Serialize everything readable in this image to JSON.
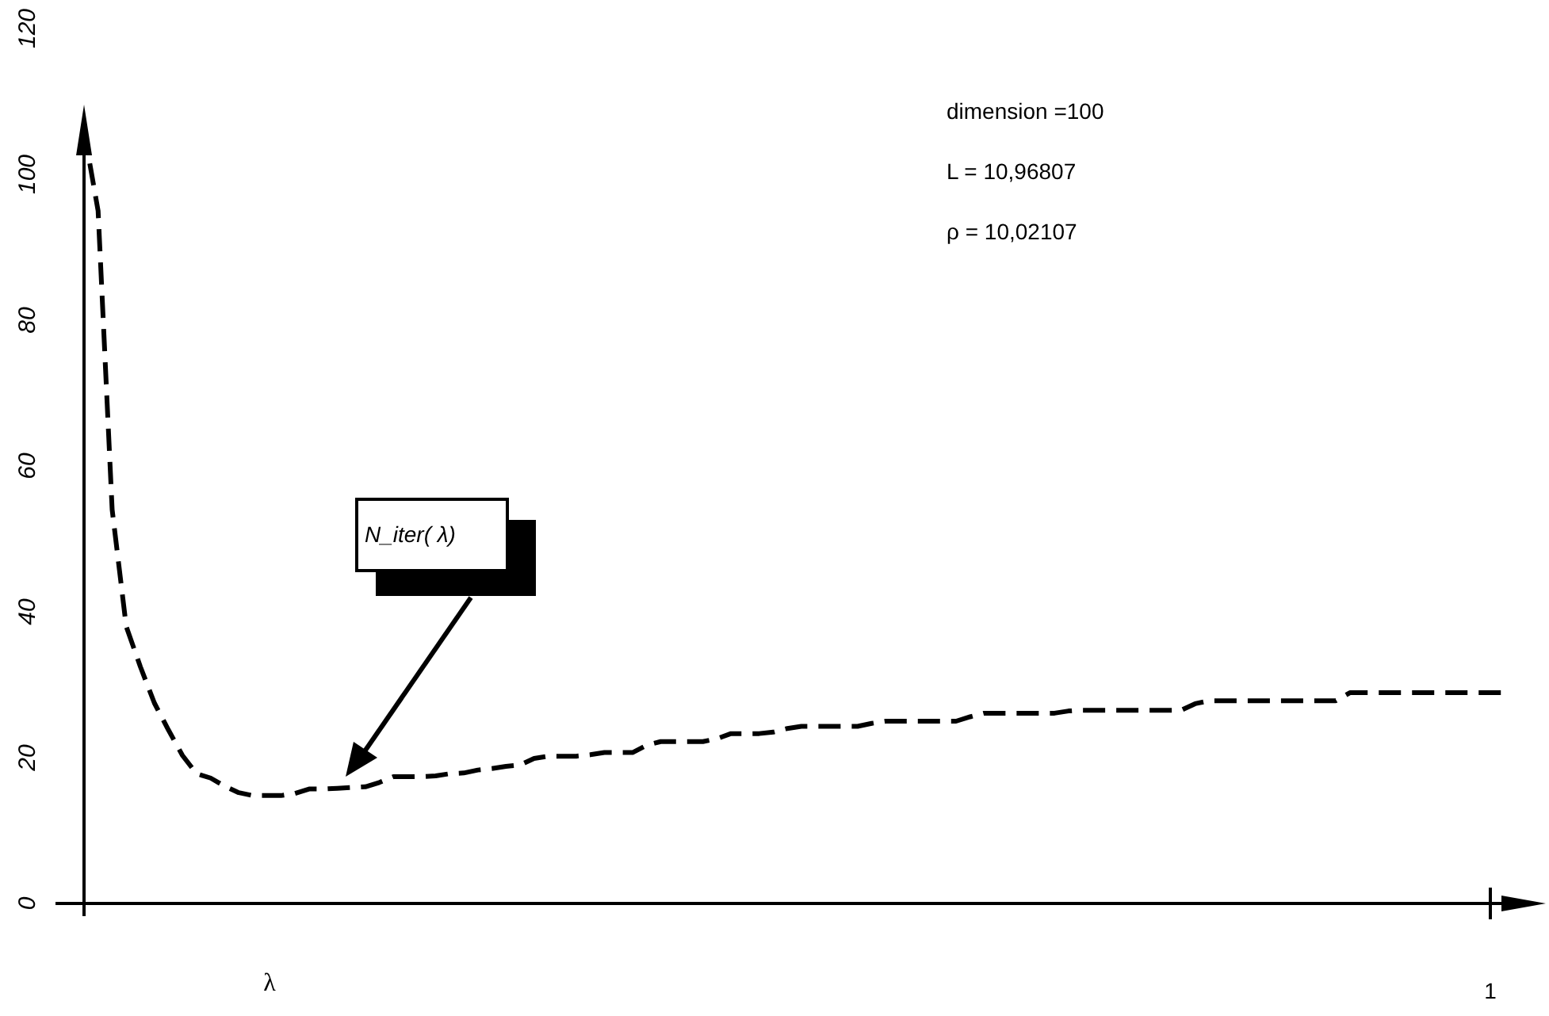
{
  "chart_data": {
    "type": "line",
    "xlabel": "λ",
    "ylim": [
      0,
      120
    ],
    "yticks": [
      0,
      20,
      40,
      60,
      80,
      100,
      120
    ],
    "line_style": "dashed",
    "marker": "none",
    "categories": [
      null,
      null,
      null,
      null,
      null,
      null,
      null,
      null,
      null,
      null,
      null,
      null,
      null,
      null,
      null,
      null,
      null,
      null,
      null,
      null,
      null,
      null,
      null,
      null,
      null,
      null,
      null,
      null,
      null,
      null,
      null,
      null,
      null,
      null,
      null,
      null,
      null,
      null,
      null,
      null,
      null,
      null,
      null,
      null,
      null,
      null,
      null,
      null,
      null,
      null,
      null,
      null,
      null,
      null,
      null,
      null,
      null,
      null,
      null,
      null,
      null,
      null,
      null,
      null,
      null,
      null,
      null,
      null,
      null,
      null,
      null,
      null,
      null,
      null,
      null,
      null,
      null,
      null,
      null,
      null,
      null,
      null,
      null,
      null,
      null,
      null,
      null,
      null,
      null,
      null,
      null,
      null,
      null,
      null,
      null,
      null,
      null,
      null,
      null,
      null,
      null,
      null
    ],
    "series": [
      {
        "color": "#000000",
        "values": [
          106,
          95,
          54,
          38,
          32.5,
          27.5,
          23.8,
          20.3,
          17.8,
          17.2,
          16.1,
          15.2,
          14.8,
          14.8,
          14.8,
          15.1,
          15.7,
          15.7,
          15.8,
          15.9,
          16,
          16.6,
          17.4,
          17.4,
          17.4,
          17.5,
          17.8,
          17.9,
          18.3,
          18.5,
          18.8,
          19,
          19.9,
          20.2,
          20.2,
          20.2,
          20.4,
          20.7,
          20.7,
          20.7,
          21.7,
          22.2,
          22.2,
          22.2,
          22.2,
          22.6,
          23.3,
          23.3,
          23.3,
          23.5,
          24,
          24.3,
          24.3,
          24.3,
          24.3,
          24.3,
          24.7,
          25,
          25,
          25,
          25,
          25,
          25,
          25.6,
          26.1,
          26.1,
          26.1,
          26.1,
          26.1,
          26.1,
          26.4,
          26.5,
          26.5,
          26.5,
          26.5,
          26.5,
          26.5,
          26.5,
          26.5,
          27.4,
          27.8,
          27.8,
          27.8,
          27.8,
          27.8,
          27.8,
          27.8,
          27.8,
          27.8,
          27.8,
          28.9,
          28.9,
          28.9,
          28.9,
          28.9,
          28.9,
          28.9,
          28.9,
          28.9,
          28.9,
          28.9,
          28.9
        ]
      }
    ],
    "annotations": [
      "N_iter( λ)",
      "dimension =100",
      "L = 10,96807",
      "ρ = 10,02107",
      "1"
    ]
  }
}
